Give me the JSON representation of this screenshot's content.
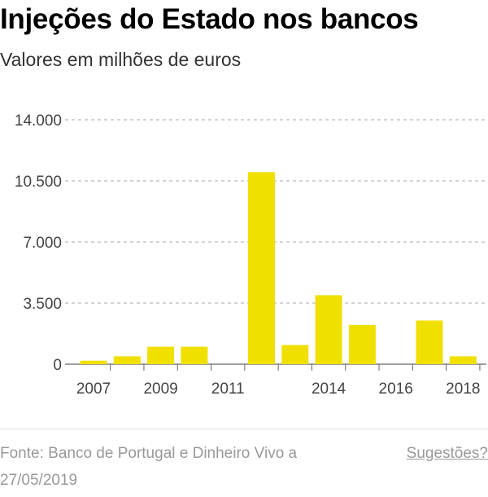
{
  "title": "Injeções do Estado nos bancos",
  "subtitle": "Valores em milhões de euros",
  "footer": {
    "source": "Fonte: Banco de Portugal e Dinheiro Vivo a 27/05/2019",
    "suggestions": "Sugestões?"
  },
  "colors": {
    "bar": "#f0e000",
    "grid": "#aaaaaa",
    "axis": "#666666"
  },
  "chart_data": {
    "type": "bar",
    "title": "Injeções do Estado nos bancos",
    "subtitle": "Valores em milhões de euros",
    "xlabel": "",
    "ylabel": "",
    "categories": [
      "2007",
      "2008",
      "2009",
      "2010",
      "2011",
      "2012",
      "2013",
      "2014",
      "2015",
      "2016",
      "2017",
      "2018"
    ],
    "x_tick_labels": [
      "2007",
      "",
      "2009",
      "",
      "2011",
      "",
      "",
      "2014",
      "",
      "2016",
      "",
      "2018"
    ],
    "values": [
      200,
      450,
      1000,
      1000,
      0,
      11000,
      1100,
      3950,
      2250,
      0,
      2500,
      450
    ],
    "ylim": [
      0,
      14000
    ],
    "yticks": [
      0,
      3500,
      7000,
      10500,
      14000
    ],
    "ytick_labels": [
      "0",
      "3.500",
      "7.000",
      "10.500",
      "14.000"
    ],
    "grid": "horizontal dashed"
  }
}
